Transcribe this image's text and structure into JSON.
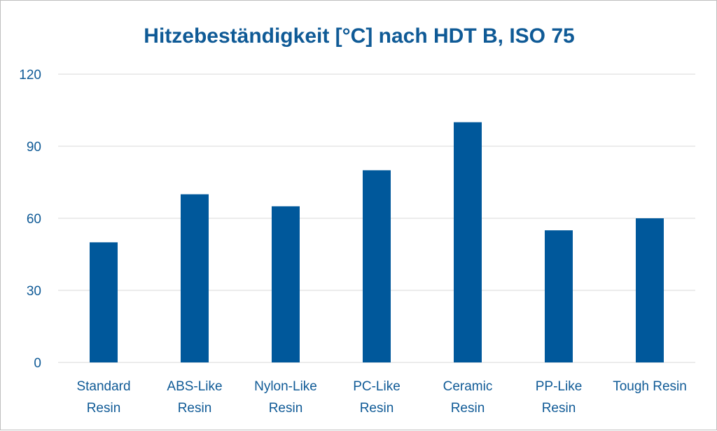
{
  "chart_data": {
    "type": "bar",
    "title": "Hitzebeständigkeit [°C]  nach HDT B, ISO 75",
    "categories": [
      [
        "Standard",
        "Resin"
      ],
      [
        "ABS-Like",
        "Resin"
      ],
      [
        "Nylon-Like",
        "Resin"
      ],
      [
        "PC-Like",
        "Resin"
      ],
      [
        "Ceramic",
        "Resin"
      ],
      [
        "PP-Like",
        "Resin"
      ],
      [
        "Tough Resin"
      ]
    ],
    "values": [
      50,
      70,
      65,
      80,
      100,
      55,
      60
    ],
    "xlabel": "",
    "ylabel": "",
    "ylim": [
      0,
      120
    ],
    "yticks": [
      "0",
      "30",
      "60",
      "90",
      "120"
    ],
    "grid": true,
    "legend": "none",
    "colors": {
      "bar": "#00589B",
      "text": "#0F5A96",
      "grid": "#D9D9D9"
    }
  }
}
